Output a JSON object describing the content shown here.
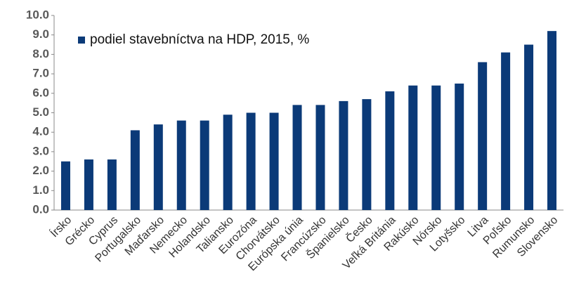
{
  "chart_data": {
    "type": "bar",
    "categories": [
      "Írsko",
      "Grécko",
      "Cyprus",
      "Portugalsko",
      "Maďarsko",
      "Nemecko",
      "Holandsko",
      "Taliansko",
      "Eurozóna",
      "Chorvátsko",
      "Európska únia",
      "Francúzsko",
      "Španielsko",
      "Česko",
      "Veľká Británia",
      "Rakúsko",
      "Nórsko",
      "Lotyšsko",
      "Litva",
      "Poľsko",
      "Rumunsko",
      "Slovensko"
    ],
    "series": [
      {
        "name": "podiel stavebníctva na HDP, 2015, %",
        "color": "#0b3a78",
        "values": [
          2.5,
          2.6,
          2.6,
          4.1,
          4.4,
          4.6,
          4.6,
          4.9,
          5.0,
          5.0,
          5.4,
          5.4,
          5.6,
          5.7,
          6.1,
          6.4,
          6.4,
          6.5,
          7.6,
          8.1,
          8.5,
          9.2
        ]
      }
    ],
    "ylim": [
      0,
      10
    ],
    "yticks": [
      {
        "value": 0,
        "label": "0.0"
      },
      {
        "value": 1,
        "label": "1.0"
      },
      {
        "value": 2,
        "label": "2.0"
      },
      {
        "value": 3,
        "label": "3.0"
      },
      {
        "value": 4,
        "label": "4.0"
      },
      {
        "value": 5,
        "label": "5.0"
      },
      {
        "value": 6,
        "label": "6.0"
      },
      {
        "value": 7,
        "label": "7.0"
      },
      {
        "value": 8,
        "label": "8.0"
      },
      {
        "value": 9,
        "label": "9.0"
      },
      {
        "value": 10,
        "label": "10.0"
      }
    ],
    "grid": false,
    "legend": "top-left"
  }
}
